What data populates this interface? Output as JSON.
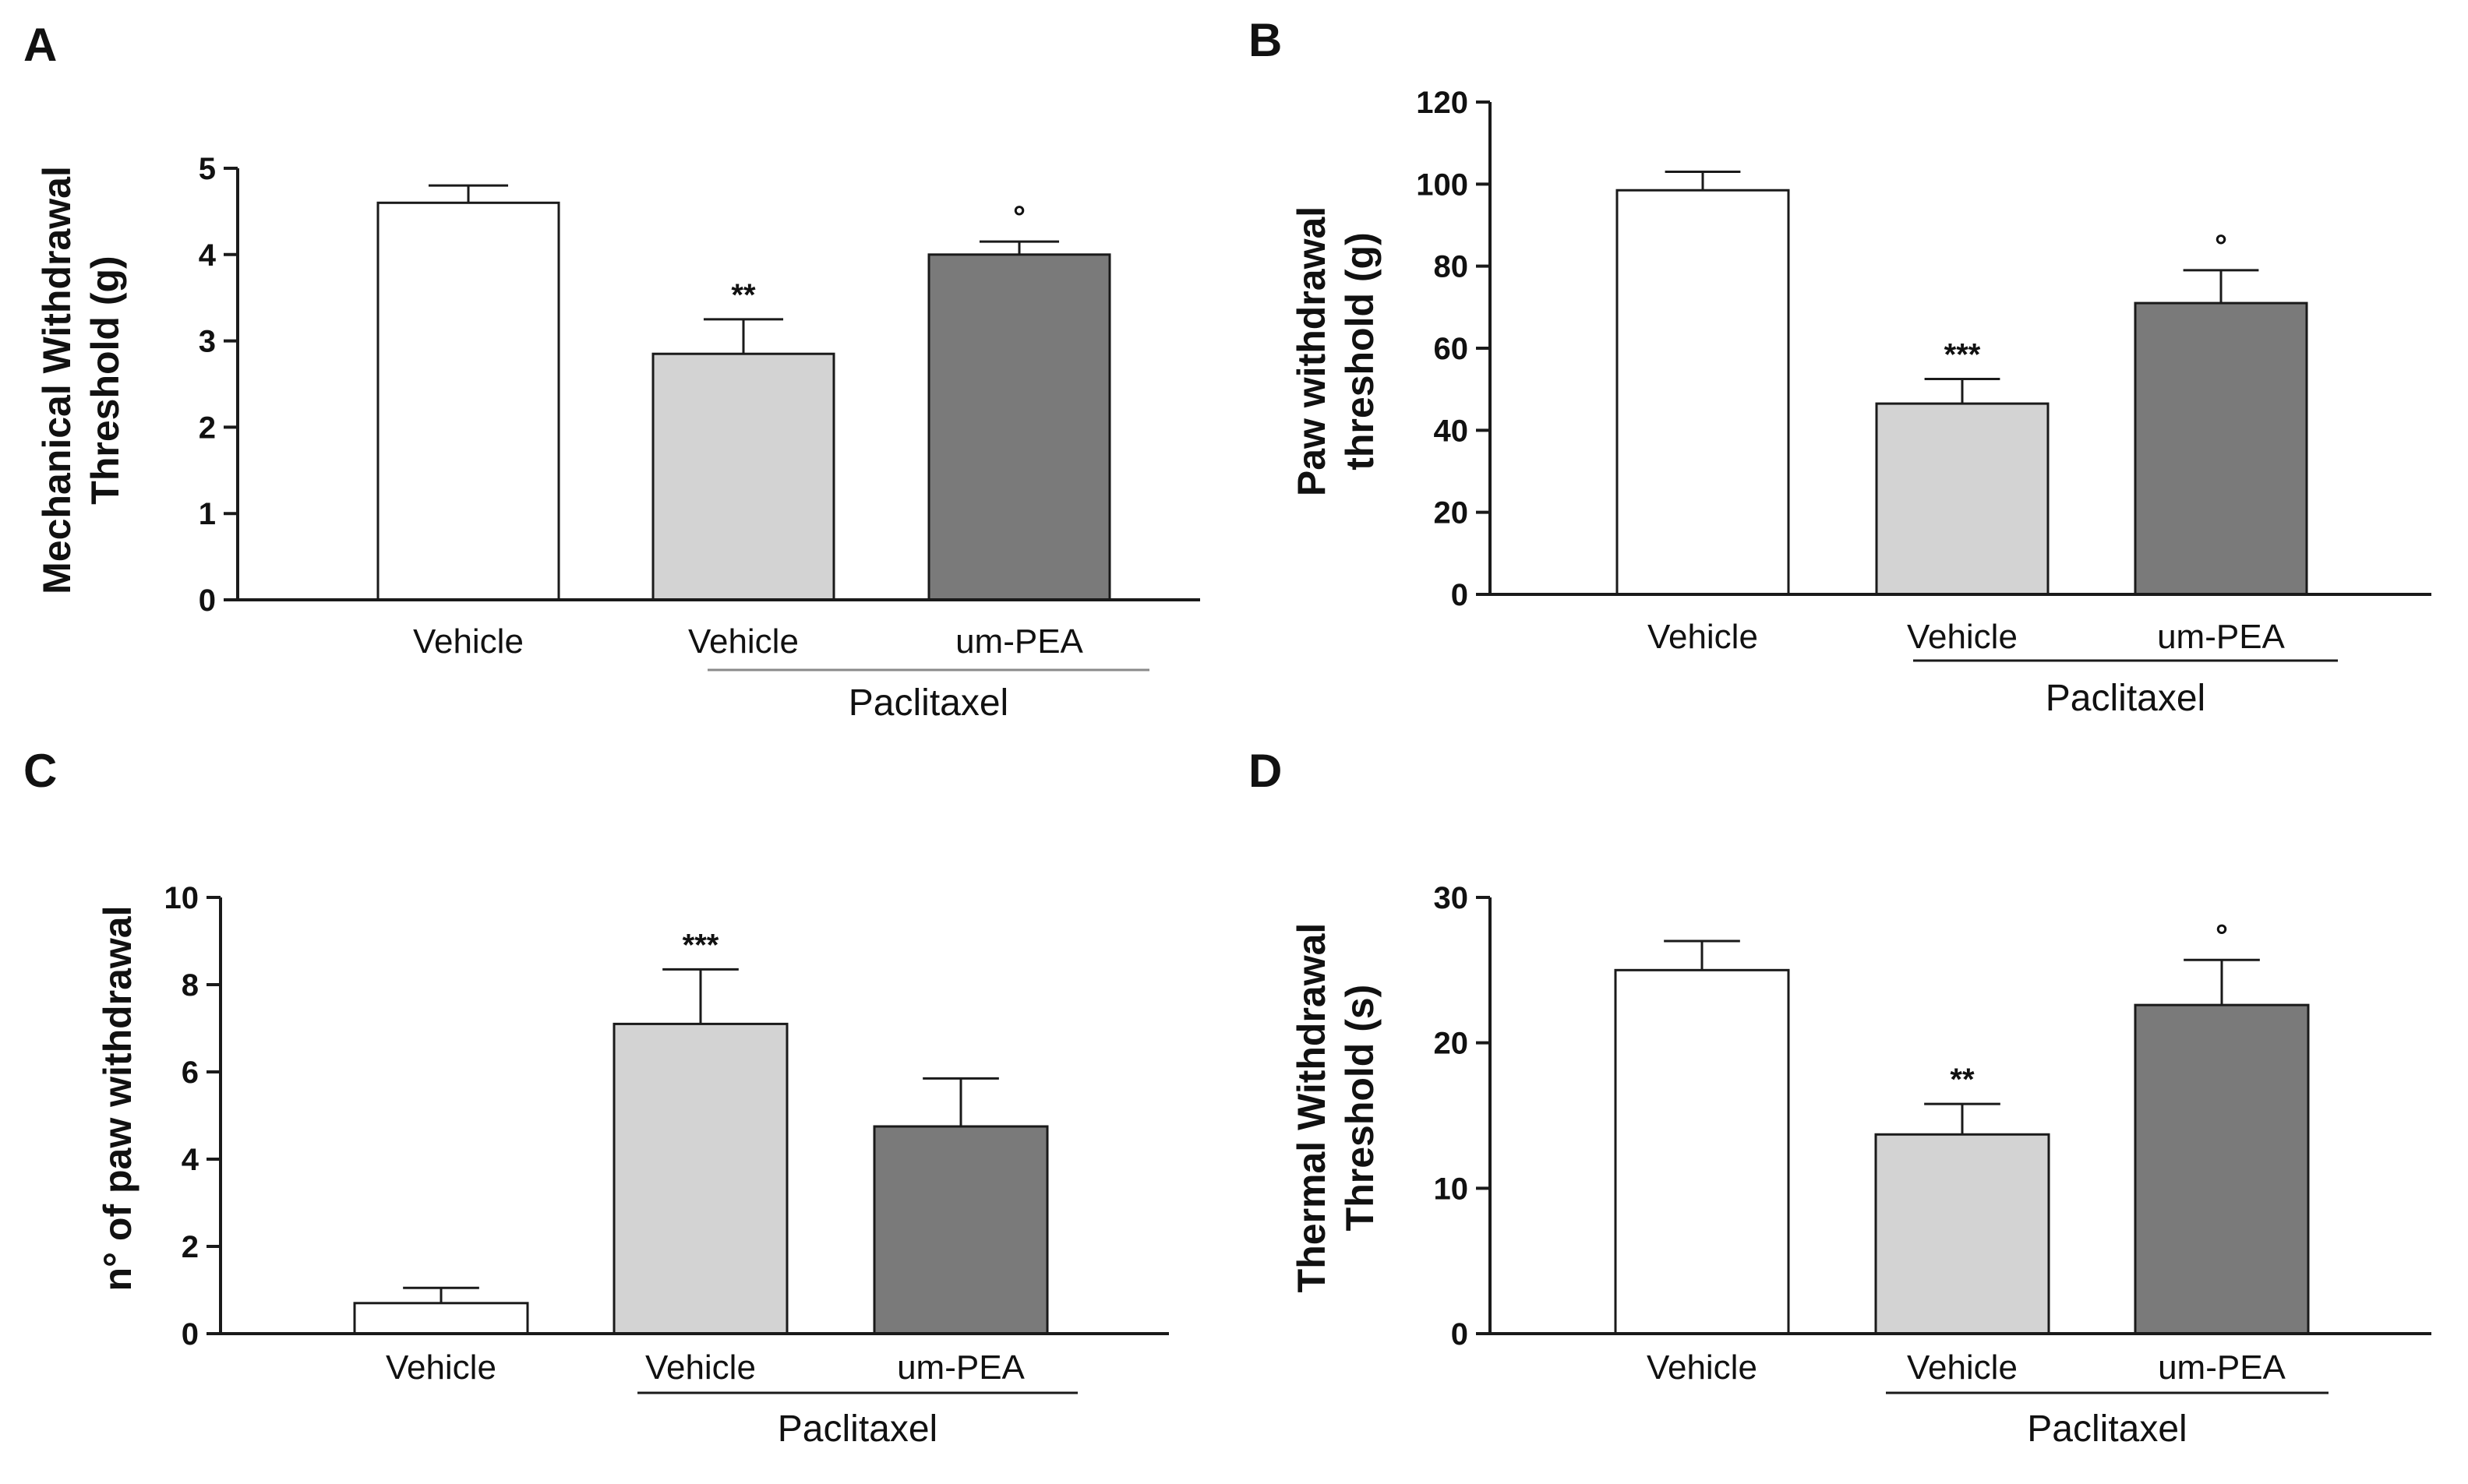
{
  "figure": {
    "colors": {
      "vehicle": "#ffffff",
      "paclitaxel_vehicle": "#d3d3d3",
      "um_pea": "#7a7a7a",
      "stroke": "#1a1a1a"
    }
  },
  "chart_data": [
    {
      "panel": "A",
      "type": "bar",
      "title": "",
      "xlabel": "",
      "ylabel_lines": [
        "Mechanical Withdrawal",
        "Threshold (g)"
      ],
      "categories": [
        "Vehicle",
        "Vehicle",
        "um-PEA"
      ],
      "values": [
        4.6,
        2.85,
        4.0
      ],
      "errors": [
        0.2,
        0.4,
        0.15
      ],
      "significance": [
        "",
        "**",
        "°"
      ],
      "ylim": [
        0,
        5
      ],
      "yticks": [
        "0",
        "1",
        "2",
        "3",
        "4",
        "5"
      ],
      "group_label": "Paclitaxel",
      "group_span": [
        1,
        2
      ]
    },
    {
      "panel": "B",
      "type": "bar",
      "title": "",
      "xlabel": "",
      "ylabel_lines": [
        "Paw withdrawal",
        "threshold (g)"
      ],
      "categories": [
        "Vehicle",
        "Vehicle",
        "um-PEA"
      ],
      "values": [
        98.5,
        46.5,
        71.0
      ],
      "errors": [
        4.5,
        6.0,
        8.0
      ],
      "significance": [
        "",
        "***",
        "°"
      ],
      "ylim": [
        0,
        120
      ],
      "yticks": [
        "0",
        "20",
        "40",
        "60",
        "80",
        "100",
        "120"
      ],
      "group_label": "Paclitaxel",
      "group_span": [
        1,
        2
      ]
    },
    {
      "panel": "C",
      "type": "bar",
      "title": "",
      "xlabel": "",
      "ylabel_lines": [
        "n° of paw withdrawal"
      ],
      "categories": [
        "Vehicle",
        "Vehicle",
        "um-PEA"
      ],
      "values": [
        0.7,
        7.1,
        4.75
      ],
      "errors": [
        0.35,
        1.25,
        1.1
      ],
      "significance": [
        "",
        "***",
        ""
      ],
      "ylim": [
        0,
        10
      ],
      "yticks": [
        "0",
        "2",
        "4",
        "6",
        "8",
        "10"
      ],
      "group_label": "Paclitaxel",
      "group_span": [
        1,
        2
      ]
    },
    {
      "panel": "D",
      "type": "bar",
      "title": "",
      "xlabel": "",
      "ylabel_lines": [
        "Thermal Withdrawal",
        "Threshold (s)"
      ],
      "categories": [
        "Vehicle",
        "Vehicle",
        "um-PEA"
      ],
      "values": [
        25.0,
        13.7,
        22.6
      ],
      "errors": [
        2.0,
        2.1,
        3.1
      ],
      "significance": [
        "",
        "**",
        "°"
      ],
      "ylim": [
        0,
        30
      ],
      "yticks": [
        "0",
        "10",
        "20",
        "30"
      ],
      "group_label": "Paclitaxel",
      "group_span": [
        1,
        2
      ]
    }
  ]
}
